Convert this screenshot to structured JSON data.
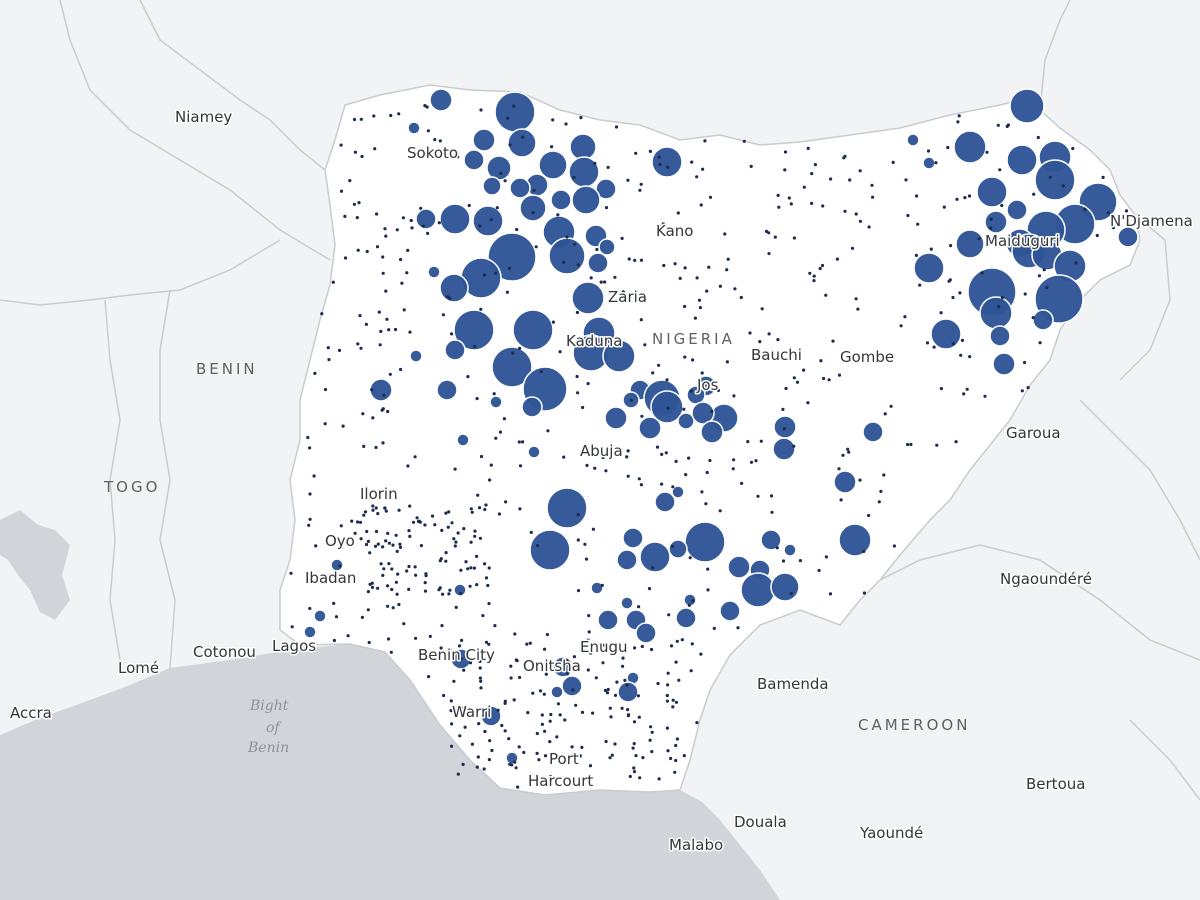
{
  "map": {
    "marker_color": "#2f5597",
    "land_color": "#f2f3f4",
    "water_color": "#d1d4d8",
    "nigeria_color": "#ffffff",
    "border_color": "#c8ccd1",
    "country_labels": [
      {
        "id": "nigeria",
        "text": "NIGERIA"
      },
      {
        "id": "benin",
        "text": "BENIN"
      },
      {
        "id": "togo",
        "text": "TOGO"
      },
      {
        "id": "cameroon",
        "text": "CAMEROON"
      }
    ],
    "water_labels": [
      {
        "id": "bight-1",
        "text": "Bight"
      },
      {
        "id": "bight-2",
        "text": "of"
      },
      {
        "id": "bight-3",
        "text": "Benin"
      }
    ],
    "city_labels": [
      {
        "id": "niamey",
        "text": "Niamey"
      },
      {
        "id": "sokoto",
        "text": "Sokoto"
      },
      {
        "id": "kano",
        "text": "Kano"
      },
      {
        "id": "ndjamena",
        "text": "N'Djamena"
      },
      {
        "id": "maiduguri",
        "text": "Maiduguri"
      },
      {
        "id": "zaria",
        "text": "Zaria"
      },
      {
        "id": "kaduna",
        "text": "Kaduna"
      },
      {
        "id": "bauchi",
        "text": "Bauchi"
      },
      {
        "id": "gombe",
        "text": "Gombe"
      },
      {
        "id": "jos",
        "text": "Jos"
      },
      {
        "id": "abuja",
        "text": "Abuja"
      },
      {
        "id": "garoua",
        "text": "Garoua"
      },
      {
        "id": "ilorin",
        "text": "Ilorin"
      },
      {
        "id": "oyo",
        "text": "Oyo"
      },
      {
        "id": "ibadan",
        "text": "Ibadan"
      },
      {
        "id": "ngaoundere",
        "text": "Ngaoundéré"
      },
      {
        "id": "cotonou",
        "text": "Cotonou"
      },
      {
        "id": "lagos",
        "text": "Lagos"
      },
      {
        "id": "lome",
        "text": "Lomé"
      },
      {
        "id": "benin-city",
        "text": "Benin City"
      },
      {
        "id": "enugu",
        "text": "Enugu"
      },
      {
        "id": "onitsha",
        "text": "Onitsha"
      },
      {
        "id": "bamenda",
        "text": "Bamenda"
      },
      {
        "id": "accra",
        "text": "Accra"
      },
      {
        "id": "warri",
        "text": "Warri"
      },
      {
        "id": "port-harcourt-1",
        "text": "Port"
      },
      {
        "id": "port-harcourt-2",
        "text": "Harcourt"
      },
      {
        "id": "bertoua",
        "text": "Bertoua"
      },
      {
        "id": "douala",
        "text": "Douala"
      },
      {
        "id": "malabo",
        "text": "Malabo"
      },
      {
        "id": "yaounde",
        "text": "Yaoundé"
      }
    ]
  }
}
